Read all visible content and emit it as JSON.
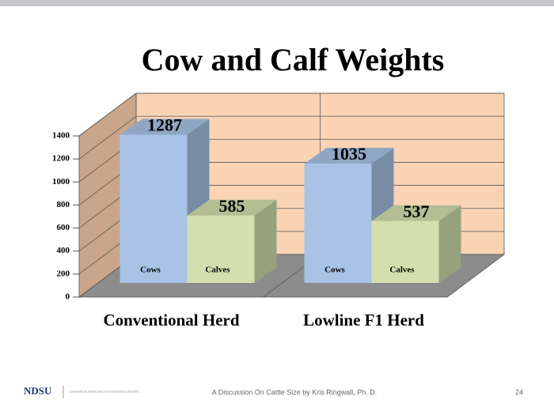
{
  "chart_data": {
    "type": "bar",
    "title": "Cow and Calf Weights",
    "categories": [
      "Conventional Herd",
      "Lowline F1 Herd"
    ],
    "series": [
      {
        "name": "Cows",
        "color": "#a8c3e6",
        "values": [
          1287,
          1035
        ]
      },
      {
        "name": "Calves",
        "color": "#d3e0ae",
        "values": [
          585,
          537
        ]
      }
    ],
    "ylim": [
      0,
      1400
    ],
    "yticks": [
      0,
      200,
      400,
      600,
      800,
      1000,
      1200,
      1400
    ],
    "grid": true
  },
  "footer": {
    "logo": "NDSU",
    "center_name": "DICKINSON RESEARCH EXTENSION CENTER",
    "text": "A Discussion On Cattle Size by Kris Ringwall, Ph. D.",
    "page": "24"
  }
}
